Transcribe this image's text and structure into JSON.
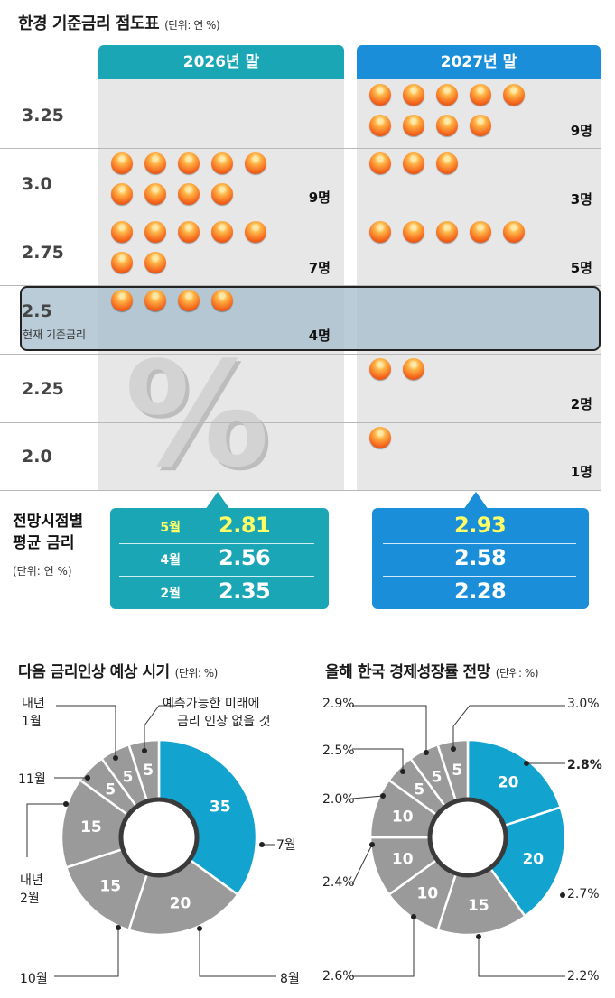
{
  "header": {
    "title": "한경 기준금리 점도표",
    "unit": "(단위: 연 %)"
  },
  "columns": [
    "2026년 말",
    "2027년 말"
  ],
  "colors": {
    "teal": "#1aa6b4",
    "blue": "#1a8ed8",
    "donut_gray": "#9a9a9a",
    "donut_blue": "#12a3cf"
  },
  "rows": [
    {
      "rate": "3.25",
      "sub": "",
      "count_2026": "",
      "count_2027": "9명"
    },
    {
      "rate": "3.0",
      "sub": "",
      "count_2026": "9명",
      "count_2027": "3명"
    },
    {
      "rate": "2.75",
      "sub": "",
      "count_2026": "7명",
      "count_2027": "5명"
    },
    {
      "rate": "2.5",
      "sub": "현재 기준금리",
      "count_2026": "4명",
      "count_2027": ""
    },
    {
      "rate": "2.25",
      "sub": "",
      "count_2026": "",
      "count_2027": "2명"
    },
    {
      "rate": "2.0",
      "sub": "",
      "count_2026": "",
      "count_2027": "1명"
    }
  ],
  "percent_symbol": "%",
  "average": {
    "title_line1": "전망시점별",
    "title_line2": "평균 금리",
    "unit": "(단위: 연 %)",
    "rows": [
      {
        "label": "5월",
        "v2026": "2.81",
        "v2027": "2.93"
      },
      {
        "label": "4월",
        "v2026": "2.56",
        "v2027": "2.58"
      },
      {
        "label": "2월",
        "v2026": "2.35",
        "v2027": "2.28"
      }
    ]
  },
  "donut1": {
    "title": "다음 금리인상 예상 시기",
    "unit": "(단위: %)",
    "annotations": {
      "jan_next": [
        "내년",
        "1월"
      ],
      "unpredictable": [
        "예측가능한 미래에",
        "금리 인상 없을 것"
      ],
      "nov": "11월",
      "feb_next": [
        "내년",
        "2월"
      ],
      "jul": "7월",
      "oct": "10월",
      "aug": "8월"
    }
  },
  "donut2": {
    "title": "올해 한국 경제성장률 전망",
    "unit": "(단위: %)",
    "annotations": {
      "p29": "2.9%",
      "p30": "3.0%",
      "p25": "2.5%",
      "p28": "2.8%",
      "p20": "2.0%",
      "p24": "2.4%",
      "p27": "2.7%",
      "p26": "2.6%",
      "p22": "2.2%"
    }
  },
  "chart_data": [
    {
      "type": "scatter",
      "title": "한경 기준금리 점도표",
      "unit": "연 %",
      "categories": [
        "2026년 말",
        "2027년 말"
      ],
      "rates": [
        3.25,
        3.0,
        2.75,
        2.5,
        2.25,
        2.0
      ],
      "series": [
        {
          "name": "2026년 말",
          "counts": [
            0,
            9,
            7,
            4,
            0,
            0
          ]
        },
        {
          "name": "2027년 말",
          "counts": [
            9,
            3,
            5,
            0,
            2,
            1
          ]
        }
      ],
      "current_rate": 2.5
    },
    {
      "type": "table",
      "title": "전망시점별 평균 금리",
      "unit": "연 %",
      "rows": [
        "5월",
        "4월",
        "2월"
      ],
      "series": [
        {
          "name": "2026년 말",
          "values": [
            2.81,
            2.56,
            2.35
          ]
        },
        {
          "name": "2027년 말",
          "values": [
            2.93,
            2.58,
            2.28
          ]
        }
      ]
    },
    {
      "type": "pie",
      "title": "다음 금리인상 예상 시기",
      "unit": "%",
      "labels": [
        "7월",
        "8월",
        "10월",
        "내년 2월",
        "11월",
        "내년 1월",
        "예측가능한 미래에 금리 인상 없을 것"
      ],
      "values": [
        35,
        20,
        15,
        15,
        5,
        5,
        5
      ],
      "highlight": "7월"
    },
    {
      "type": "pie",
      "title": "올해 한국 경제성장률 전망",
      "unit": "%",
      "labels": [
        "2.8%",
        "2.7%",
        "2.2%",
        "2.6%",
        "2.4%",
        "2.0%",
        "2.5%",
        "2.9%",
        "3.0%"
      ],
      "values": [
        20,
        20,
        15,
        10,
        10,
        10,
        5,
        5,
        5
      ],
      "highlight": [
        "2.8%",
        "2.7%"
      ]
    }
  ]
}
